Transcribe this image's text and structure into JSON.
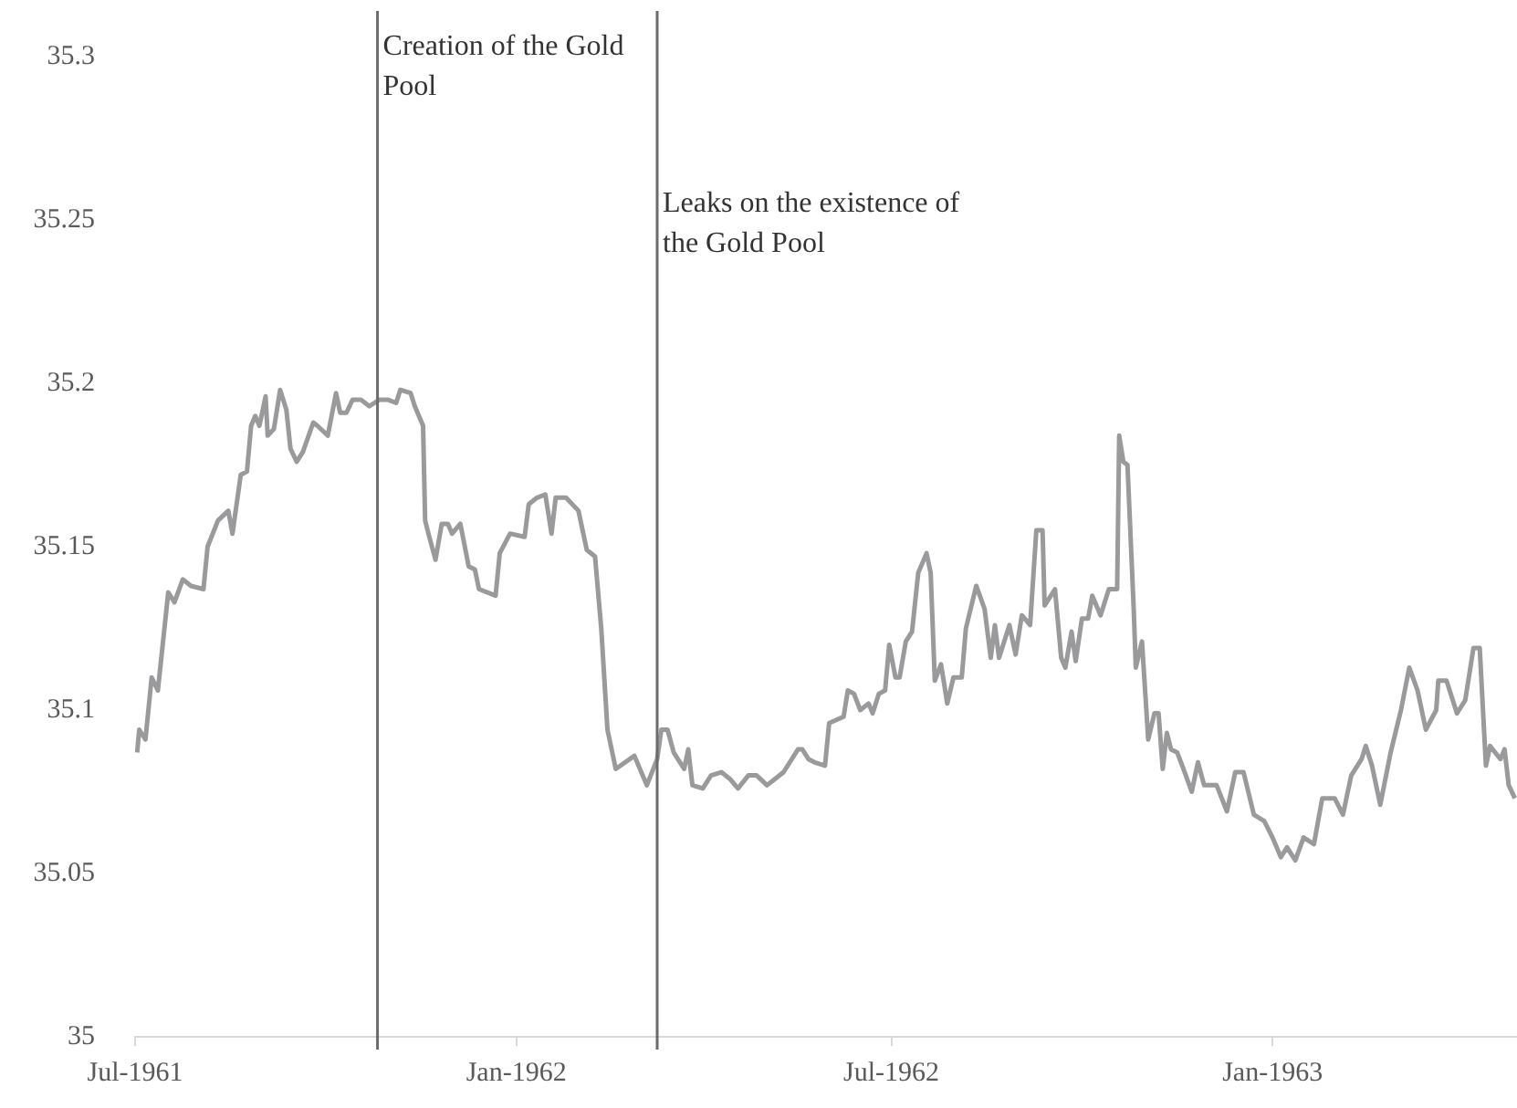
{
  "chart_data": {
    "type": "line",
    "x": [
      "1961-07-02",
      "1961-07-03",
      "1961-07-06",
      "1961-07-09",
      "1961-07-12",
      "1961-07-17",
      "1961-07-20",
      "1961-07-24",
      "1961-07-28",
      "1961-08-03",
      "1961-08-05",
      "1961-08-10",
      "1961-08-15",
      "1961-08-17",
      "1961-08-21",
      "1961-08-24",
      "1961-08-26",
      "1961-08-28",
      "1961-08-30",
      "1961-09-02",
      "1961-09-03",
      "1961-09-06",
      "1961-09-09",
      "1961-09-12",
      "1961-09-14",
      "1961-09-17",
      "1961-09-20",
      "1961-09-25",
      "1961-09-27",
      "1961-10-02",
      "1961-10-06",
      "1961-10-08",
      "1961-10-11",
      "1961-10-14",
      "1961-10-18",
      "1961-10-22",
      "1961-10-27",
      "1961-10-31",
      "1961-11-04",
      "1961-11-06",
      "1961-11-11",
      "1961-11-13",
      "1961-11-17",
      "1961-11-18",
      "1961-11-20",
      "1961-11-23",
      "1961-11-26",
      "1961-11-29",
      "1961-12-01",
      "1961-12-05",
      "1961-12-09",
      "1961-12-12",
      "1961-12-14",
      "1961-12-22",
      "1961-12-24",
      "1961-12-29",
      "1962-01-05",
      "1962-01-07",
      "1962-01-11",
      "1962-01-15",
      "1962-01-18",
      "1962-01-20",
      "1962-01-25",
      "1962-01-31",
      "1962-02-04",
      "1962-02-08",
      "1962-02-11",
      "1962-02-14",
      "1962-02-18",
      "1962-02-27",
      "1962-03-05",
      "1962-03-10",
      "1962-03-12",
      "1962-03-15",
      "1962-03-18",
      "1962-03-23",
      "1962-03-25",
      "1962-03-27",
      "1962-04-01",
      "1962-04-05",
      "1962-04-10",
      "1962-04-14",
      "1962-04-18",
      "1962-04-23",
      "1962-04-27",
      "1962-05-02",
      "1962-05-06",
      "1962-05-10",
      "1962-05-17",
      "1962-05-19",
      "1962-05-22",
      "1962-05-25",
      "1962-05-30",
      "1962-06-01",
      "1962-06-08",
      "1962-06-10",
      "1962-06-13",
      "1962-06-16",
      "1962-06-20",
      "1962-06-22",
      "1962-06-25",
      "1962-06-28",
      "1962-06-30",
      "1962-07-03",
      "1962-07-05",
      "1962-07-08",
      "1962-07-11",
      "1962-07-14",
      "1962-07-18",
      "1962-07-20",
      "1962-07-22",
      "1962-07-25",
      "1962-07-28",
      "1962-07-31",
      "1962-08-04",
      "1962-08-06",
      "1962-08-11",
      "1962-08-15",
      "1962-08-18",
      "1962-08-20",
      "1962-08-22",
      "1962-08-27",
      "1962-08-30",
      "1962-09-02",
      "1962-09-06",
      "1962-09-09",
      "1962-09-12",
      "1962-09-13",
      "1962-09-18",
      "1962-09-21",
      "1962-09-23",
      "1962-09-26",
      "1962-09-28",
      "1962-10-01",
      "1962-10-04",
      "1962-10-06",
      "1962-10-10",
      "1962-10-14",
      "1962-10-18",
      "1962-10-19",
      "1962-10-21",
      "1962-10-23",
      "1962-10-26",
      "1962-10-27",
      "1962-10-30",
      "1962-11-02",
      "1962-11-05",
      "1962-11-07",
      "1962-11-09",
      "1962-11-11",
      "1962-11-13",
      "1962-11-16",
      "1962-11-19",
      "1962-11-23",
      "1962-11-26",
      "1962-11-29",
      "1962-12-05",
      "1962-12-10",
      "1962-12-14",
      "1962-12-18",
      "1962-12-23",
      "1962-12-28",
      "1963-01-01",
      "1963-01-05",
      "1963-01-08",
      "1963-01-12",
      "1963-01-16",
      "1963-01-21",
      "1963-01-25",
      "1963-01-31",
      "1963-02-04",
      "1963-02-08",
      "1963-02-13",
      "1963-02-15",
      "1963-02-18",
      "1963-02-22",
      "1963-02-27",
      "1963-03-04",
      "1963-03-08",
      "1963-03-12",
      "1963-03-16",
      "1963-03-21",
      "1963-03-22",
      "1963-03-26",
      "1963-03-31",
      "1963-04-04",
      "1963-04-08",
      "1963-04-11",
      "1963-04-14",
      "1963-04-16",
      "1963-04-21",
      "1963-04-23",
      "1963-04-25",
      "1963-04-28"
    ],
    "series": [
      {
        "color": "#9a9a9c",
        "values": [
          35.087,
          35.094,
          35.091,
          35.11,
          35.106,
          35.136,
          35.133,
          35.14,
          35.138,
          35.137,
          35.15,
          35.158,
          35.161,
          35.154,
          35.172,
          35.173,
          35.187,
          35.19,
          35.187,
          35.196,
          35.184,
          35.186,
          35.198,
          35.192,
          35.18,
          35.176,
          35.179,
          35.188,
          35.187,
          35.184,
          35.197,
          35.191,
          35.191,
          35.195,
          35.195,
          35.193,
          35.195,
          35.195,
          35.194,
          35.198,
          35.197,
          35.193,
          35.187,
          35.158,
          35.153,
          35.146,
          35.157,
          35.157,
          35.154,
          35.157,
          35.144,
          35.143,
          35.137,
          35.135,
          35.148,
          35.154,
          35.153,
          35.163,
          35.165,
          35.166,
          35.154,
          35.165,
          35.165,
          35.161,
          35.149,
          35.147,
          35.125,
          35.094,
          35.082,
          35.086,
          35.077,
          35.085,
          35.094,
          35.094,
          35.087,
          35.082,
          35.088,
          35.077,
          35.076,
          35.08,
          35.081,
          35.079,
          35.076,
          35.08,
          35.08,
          35.077,
          35.079,
          35.081,
          35.088,
          35.088,
          35.085,
          35.084,
          35.083,
          35.096,
          35.098,
          35.106,
          35.105,
          35.1,
          35.102,
          35.099,
          35.105,
          35.106,
          35.12,
          35.11,
          35.11,
          35.121,
          35.124,
          35.142,
          35.148,
          35.142,
          35.109,
          35.114,
          35.102,
          35.11,
          35.11,
          35.125,
          35.138,
          35.131,
          35.116,
          35.126,
          35.116,
          35.126,
          35.117,
          35.129,
          35.126,
          35.155,
          35.155,
          35.132,
          35.137,
          35.116,
          35.113,
          35.124,
          35.115,
          35.128,
          35.128,
          35.135,
          35.129,
          35.137,
          35.137,
          35.184,
          35.176,
          35.175,
          35.131,
          35.113,
          35.121,
          35.091,
          35.099,
          35.099,
          35.082,
          35.093,
          35.088,
          35.087,
          35.082,
          35.075,
          35.084,
          35.077,
          35.077,
          35.069,
          35.081,
          35.081,
          35.068,
          35.066,
          35.061,
          35.055,
          35.058,
          35.054,
          35.061,
          35.059,
          35.073,
          35.073,
          35.068,
          35.08,
          35.085,
          35.089,
          35.083,
          35.071,
          35.087,
          35.1,
          35.113,
          35.106,
          35.094,
          35.1,
          35.109,
          35.109,
          35.099,
          35.103,
          35.119,
          35.119,
          35.083,
          35.089,
          35.085,
          35.088,
          35.077,
          35.073
        ]
      }
    ],
    "xlim": [
      "1961-07-01",
      "1963-04-29"
    ],
    "xticks": [
      {
        "value": "1961-07",
        "label": "Jul-1961"
      },
      {
        "value": "1962-01",
        "label": "Jan-1962"
      },
      {
        "value": "1962-07",
        "label": "Jul-1962"
      },
      {
        "value": "1963-01",
        "label": "Jan-1963"
      }
    ],
    "ylim": [
      35,
      35.3
    ],
    "yticks": [
      35,
      35.05,
      35.1,
      35.15,
      35.2,
      35.25,
      35.3
    ],
    "ref_lines": [
      {
        "axis": "x",
        "value": "1961-10-26",
        "label": "Creation of the Gold Pool",
        "color": "#6b6b6b"
      },
      {
        "axis": "x",
        "value": "1962-03-10",
        "label": "Leaks on the existence of the Gold Pool",
        "color": "#6b6b6b"
      }
    ],
    "grid": false,
    "legend": false,
    "marker": "none",
    "line_style": "solid"
  }
}
